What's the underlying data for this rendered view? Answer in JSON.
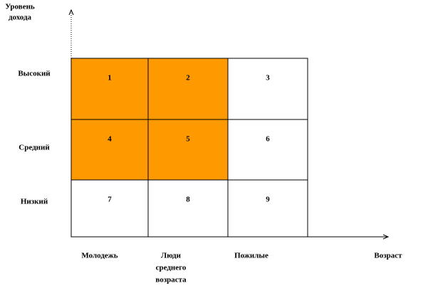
{
  "y_axis": {
    "title": [
      "Уровень",
      "дохода"
    ],
    "rows": [
      "Высокий",
      "Средний",
      "Низкий"
    ]
  },
  "x_axis": {
    "title": "Возраст",
    "columns": [
      [
        "Молодежь"
      ],
      [
        "Люди",
        "среднего",
        "возраста"
      ],
      [
        "Пожилые"
      ]
    ]
  },
  "highlight_color": "#ff9900",
  "cells": [
    [
      {
        "label": "1",
        "highlighted": true
      },
      {
        "label": "2",
        "highlighted": true
      },
      {
        "label": "3",
        "highlighted": false
      }
    ],
    [
      {
        "label": "4",
        "highlighted": true
      },
      {
        "label": "5",
        "highlighted": true
      },
      {
        "label": "6",
        "highlighted": false
      }
    ],
    [
      {
        "label": "7",
        "highlighted": false
      },
      {
        "label": "8",
        "highlighted": false
      },
      {
        "label": "9",
        "highlighted": false
      }
    ]
  ]
}
